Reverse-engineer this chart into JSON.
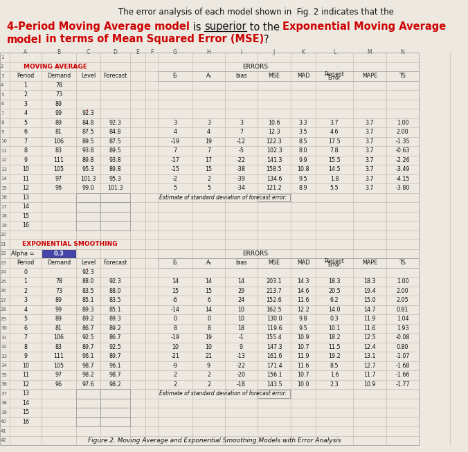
{
  "bg_color": "#ede8e0",
  "grid_color": "#b8b0a8",
  "header_red": "#cc0000",
  "text_dark": "#111111",
  "title_line1": "The error analysis of each model shown in  Fig. 2 indicates that the",
  "ma_estimate_text": "Estimate of standard deviation of forecast error:",
  "es_estimate_text": "Estimate of standard deviation of forecast error:",
  "figure_caption": "Figure 2. Moving Average and Exponential Smoothing Models with Error Analysis",
  "ma_data": [
    [
      "4",
      "1",
      "78",
      "",
      "",
      "",
      "",
      "",
      "",
      "",
      "",
      "",
      "",
      "",
      ""
    ],
    [
      "5",
      "2",
      "73",
      "",
      "",
      "",
      "",
      "",
      "",
      "",
      "",
      "",
      "",
      "",
      ""
    ],
    [
      "6",
      "3",
      "89",
      "",
      "",
      "",
      "",
      "",
      "",
      "",
      "",
      "",
      "",
      "",
      ""
    ],
    [
      "7",
      "4",
      "99",
      "",
      "92.3",
      "",
      "",
      "",
      "",
      "",
      "",
      "",
      "",
      "",
      ""
    ],
    [
      "8",
      "5",
      "89",
      "",
      "84.8",
      "92.3",
      "",
      "3",
      "3",
      "3",
      "10.6",
      "3.3",
      "3.7",
      "3.7",
      "1.00"
    ],
    [
      "9",
      "6",
      "81",
      "",
      "87.5",
      "84.8",
      "",
      "4",
      "4",
      "7",
      "12.3",
      "3.5",
      "4.6",
      "3.7",
      "2.00"
    ],
    [
      "10",
      "7",
      "106",
      "",
      "89.5",
      "87.5",
      "",
      "-19",
      "19",
      "-12",
      "122.3",
      "8.5",
      "17.5",
      "3.7",
      "-1.35"
    ],
    [
      "11",
      "8",
      "83",
      "",
      "93.8",
      "89.5",
      "",
      "7",
      "7",
      "-5",
      "102.3",
      "8.0",
      "7.8",
      "3.7",
      "-0.63"
    ],
    [
      "12",
      "9",
      "111",
      "",
      "89.8",
      "93.8",
      "",
      "-17",
      "17",
      "-22",
      "141.3",
      "9.9",
      "15.5",
      "3.7",
      "-2.26"
    ],
    [
      "13",
      "10",
      "105",
      "",
      "95.3",
      "89.8",
      "",
      "-15",
      "15",
      "-38",
      "158.5",
      "10.8",
      "14.5",
      "3.7",
      "-3.49"
    ],
    [
      "14",
      "11",
      "97",
      "",
      "101.3",
      "95.3",
      "",
      "-2",
      "2",
      "-39",
      "134.6",
      "9.5",
      "1.8",
      "3.7",
      "-4.15"
    ],
    [
      "15",
      "12",
      "96",
      "",
      "99.0",
      "101.3",
      "",
      "5",
      "5",
      "-34",
      "121.2",
      "8.9",
      "5.5",
      "3.7",
      "-3.80"
    ]
  ],
  "ma_empty": [
    [
      "16",
      "13"
    ],
    [
      "17",
      "14"
    ],
    [
      "18",
      "15"
    ],
    [
      "19",
      "16"
    ]
  ],
  "es_data": [
    [
      "24",
      "0",
      "",
      "",
      "92.3",
      "",
      "",
      "",
      "",
      "",
      "",
      "",
      "",
      "",
      ""
    ],
    [
      "25",
      "1",
      "78",
      "",
      "88.0",
      "92.3",
      "",
      "14",
      "14",
      "14",
      "203.1",
      "14.3",
      "18.3",
      "18.3",
      "1.00"
    ],
    [
      "26",
      "2",
      "73",
      "",
      "83.5",
      "88.0",
      "",
      "15",
      "15",
      "29",
      "213.7",
      "14.6",
      "20.5",
      "19.4",
      "2.00"
    ],
    [
      "27",
      "3",
      "89",
      "",
      "85.1",
      "83.5",
      "",
      "-6",
      "6",
      "24",
      "152.6",
      "11.6",
      "6.2",
      "15.0",
      "2.05"
    ],
    [
      "28",
      "4",
      "99",
      "",
      "89.3",
      "85.1",
      "",
      "-14",
      "14",
      "10",
      "162.5",
      "12.2",
      "14.0",
      "14.7",
      "0.81"
    ],
    [
      "29",
      "5",
      "89",
      "",
      "89.2",
      "89.3",
      "",
      "0",
      "0",
      "10",
      "130.0",
      "9.8",
      "0.3",
      "11.9",
      "1.04"
    ],
    [
      "30",
      "6",
      "81",
      "",
      "86.7",
      "89.2",
      "",
      "8",
      "8",
      "18",
      "119.6",
      "9.5",
      "10.1",
      "11.6",
      "1.93"
    ],
    [
      "31",
      "7",
      "106",
      "",
      "92.5",
      "86.7",
      "",
      "-19",
      "19",
      "-1",
      "155.4",
      "10.9",
      "18.2",
      "12.5",
      "-0.08"
    ],
    [
      "32",
      "8",
      "83",
      "",
      "89.7",
      "92.5",
      "",
      "10",
      "10",
      "9",
      "147.3",
      "10.7",
      "11.5",
      "12.4",
      "0.80"
    ],
    [
      "33",
      "9",
      "111",
      "",
      "96.1",
      "89.7",
      "",
      "-21",
      "21",
      "-13",
      "161.6",
      "11.9",
      "19.2",
      "13.1",
      "-1.07"
    ],
    [
      "34",
      "10",
      "105",
      "",
      "98.7",
      "96.1",
      "",
      "-9",
      "9",
      "-22",
      "171.4",
      "11.6",
      "8.5",
      "12.7",
      "-1.68"
    ],
    [
      "35",
      "11",
      "97",
      "",
      "98.2",
      "98.7",
      "",
      "2",
      "2",
      "-20",
      "156.1",
      "10.7",
      "1.6",
      "11.7",
      "-1.66"
    ],
    [
      "36",
      "12",
      "96",
      "",
      "97.6",
      "98.2",
      "",
      "2",
      "2",
      "-18",
      "143.5",
      "10.0",
      "2.3",
      "10.9",
      "-1.77"
    ]
  ],
  "es_empty": [
    [
      "37",
      "13"
    ],
    [
      "38",
      "14"
    ],
    [
      "39",
      "15"
    ],
    [
      "40",
      "16"
    ]
  ]
}
